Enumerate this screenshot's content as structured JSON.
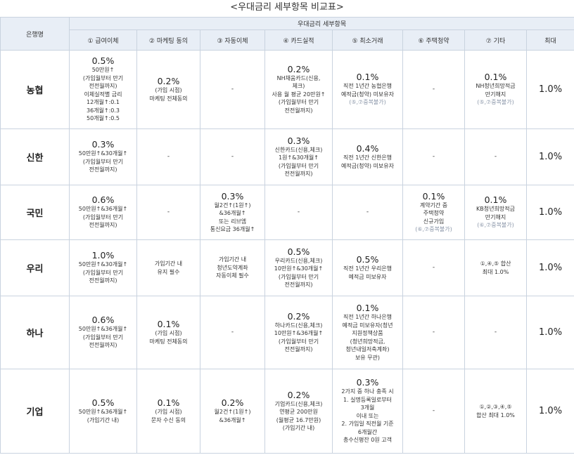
{
  "title": "<우대금리 세부항목 비교표>",
  "header": {
    "bank": "은행명",
    "group": "우대금리 세부항목",
    "columns": [
      "① 급여이체",
      "② 마케팅 동의",
      "③ 자동이체",
      "④ 카드실적",
      "⑤ 최소거래",
      "⑥ 주택청약",
      "⑦ 기타",
      "최대"
    ]
  },
  "rows": [
    {
      "bank": "농협",
      "cells": [
        {
          "pct": "0.5%",
          "lines": [
            "50만원↑",
            "(가입월부터 만기",
            "전전월까지)",
            "이체실적별 금리",
            "12개월↑:0.1",
            "36개월↑:0.3",
            "50개월↑:0.5"
          ]
        },
        {
          "pct": "0.2%",
          "lines": [
            "(가입 시점)",
            "마케팅 전체동의"
          ]
        },
        {
          "pct": "",
          "lines": [
            "-"
          ]
        },
        {
          "pct": "0.2%",
          "lines": [
            "NH채움카드(신용,",
            "체크)",
            "사용 월 평균 20만원↑",
            "(가입월부터 만기",
            "전전월까지)"
          ]
        },
        {
          "pct": "0.1%",
          "lines": [
            "직전 1년간 농협은행",
            "예적금(청약) 미보유자",
            "(⑤,⑦중복불가)"
          ]
        },
        {
          "pct": "",
          "lines": [
            "-"
          ]
        },
        {
          "pct": "0.1%",
          "lines": [
            "NH청년희망적금",
            "만기해지",
            "(⑤,⑦중복불가)"
          ]
        }
      ],
      "max": "1.0%"
    },
    {
      "bank": "신한",
      "cells": [
        {
          "pct": "0.3%",
          "lines": [
            "50만원↑&30개월↑",
            "(가입월부터 만기",
            "전전월까지)"
          ]
        },
        {
          "pct": "",
          "lines": [
            "-"
          ]
        },
        {
          "pct": "",
          "lines": [
            "-"
          ]
        },
        {
          "pct": "0.3%",
          "lines": [
            "신한카드(신용,체크)",
            "1원↑&30개월↑",
            "(가입월부터 만기",
            "전전월까지)"
          ]
        },
        {
          "pct": "0.4%",
          "lines": [
            "직전 1년간 신한은행",
            "예적금(청약) 미보유자"
          ]
        },
        {
          "pct": "",
          "lines": [
            "-"
          ]
        },
        {
          "pct": "",
          "lines": [
            "-"
          ]
        }
      ],
      "max": "1.0%"
    },
    {
      "bank": "국민",
      "cells": [
        {
          "pct": "0.6%",
          "lines": [
            "50만원↑&36개월↑",
            "(가입월부터 만기",
            "전전월까지)"
          ]
        },
        {
          "pct": "",
          "lines": [
            "-"
          ]
        },
        {
          "pct": "0.3%",
          "lines": [
            "월2건↑(1원↑)",
            "&36개월↑",
            "또는 리브엠",
            "통신요금 36개월↑"
          ]
        },
        {
          "pct": "",
          "lines": [
            "-"
          ]
        },
        {
          "pct": "",
          "lines": [
            "-"
          ]
        },
        {
          "pct": "0.1%",
          "lines": [
            "계약기간 중",
            "주택청약",
            "신규가입",
            "(⑥,⑦중복불가)"
          ]
        },
        {
          "pct": "0.1%",
          "lines": [
            "KB청년희망적금",
            "만기해지",
            "(⑥,⑦중복불가)"
          ]
        }
      ],
      "max": "1.0%"
    },
    {
      "bank": "우리",
      "cells": [
        {
          "pct": "1.0%",
          "lines": [
            "50만원↑&30개월↑",
            "(가입월부터 만기",
            "전전월까지)"
          ]
        },
        {
          "pct": "",
          "lines": [
            "가입기간 내",
            "유지 필수"
          ]
        },
        {
          "pct": "",
          "lines": [
            "가입기간 내",
            "청년도약계좌",
            "자동이체 필수"
          ]
        },
        {
          "pct": "0.5%",
          "lines": [
            "우리카드(신용,체크)",
            "10만원↑&30개월↑",
            "(가입월부터 만기",
            "전전월까지)"
          ]
        },
        {
          "pct": "0.5%",
          "lines": [
            "직전 1년간 우리은행",
            "예적금 미보유자"
          ]
        },
        {
          "pct": "",
          "lines": [
            "-"
          ]
        },
        {
          "pct": "",
          "lines": [
            "①,④,⑤ 합산",
            "최대 1.0%"
          ]
        }
      ],
      "max": "1.0%"
    },
    {
      "bank": "하나",
      "cells": [
        {
          "pct": "0.6%",
          "lines": [
            "50만원↑&36개월↑",
            "(가입월부터 만기",
            "전전월까지)"
          ]
        },
        {
          "pct": "0.1%",
          "lines": [
            "(가입 시점)",
            "마케팅 전체동의"
          ]
        },
        {
          "pct": "",
          "lines": [
            "-"
          ]
        },
        {
          "pct": "0.2%",
          "lines": [
            "하나카드(신용,체크)",
            "10만원↑&36개월↑",
            "(가입월부터 만기",
            "전전월까지)"
          ]
        },
        {
          "pct": "0.1%",
          "lines": [
            "직전 1년간 하나은행",
            "예적금 미보유자(청년",
            "지원정책상품",
            "(청년희망적금,",
            "청년내일저축계좌)",
            "보유 무관)"
          ]
        },
        {
          "pct": "",
          "lines": [
            "-"
          ]
        },
        {
          "pct": "",
          "lines": [
            "-"
          ]
        }
      ],
      "max": "1.0%"
    },
    {
      "bank": "기업",
      "cells": [
        {
          "pct": "0.5%",
          "lines": [
            "50만원↑&36개월↑",
            "(가입기간 내)"
          ]
        },
        {
          "pct": "0.1%",
          "lines": [
            "(가입 시점)",
            "문자 수신 동의"
          ]
        },
        {
          "pct": "0.2%",
          "lines": [
            "월2건↑(1원↑)",
            "&36개월↑"
          ]
        },
        {
          "pct": "0.2%",
          "lines": [
            "기업카드(신용,체크)",
            "연평균 200만원",
            "(월평균 16.7만원)",
            "(가입기간 내)"
          ]
        },
        {
          "pct": "0.3%",
          "lines": [
            "2가지 중 하나 충족 시",
            "1. 실명등록일로부터",
            "3개월",
            "이내 또는",
            "2. 가입일 직전월 기준",
            "6개월간",
            "총수신평잔 0원 고객"
          ]
        },
        {
          "pct": "",
          "lines": [
            "-"
          ]
        },
        {
          "pct": "",
          "lines": [
            "①,②,③,④,⑤",
            "합산 최대 1.0%"
          ]
        }
      ],
      "max": "1.0%"
    }
  ]
}
